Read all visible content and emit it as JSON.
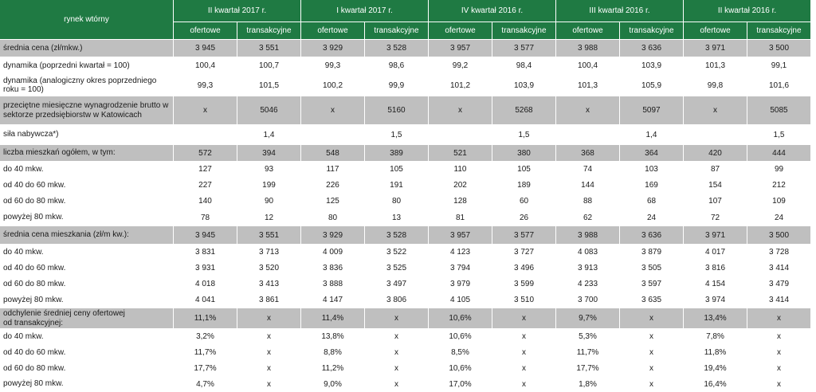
{
  "colors": {
    "header_bg": "#1f7a43",
    "header_text": "#ffffff",
    "shaded_row_bg": "#bfbfbf",
    "plain_row_bg": "#ffffff",
    "text": "#1a1a1a"
  },
  "chart_data": {
    "type": "table",
    "corner_label": "rynek wtórny",
    "column_groups": [
      "II kwartał 2017 r.",
      "I kwartał 2017 r.",
      "IV kwartał 2016 r.",
      "III kwartał 2016 r.",
      "II kwartał 2016 r."
    ],
    "subcolumns": [
      "ofertowe",
      "transakcyjne"
    ],
    "rows": [
      {
        "label": "średnia cena (zł/mkw.)",
        "shaded": true,
        "values": [
          "3 945",
          "3 551",
          "3 929",
          "3 528",
          "3 957",
          "3 577",
          "3 988",
          "3 636",
          "3 971",
          "3 500"
        ]
      },
      {
        "label": "dynamika (poprzedni kwartał = 100)",
        "shaded": false,
        "values": [
          "100,4",
          "100,7",
          "99,3",
          "98,6",
          "99,2",
          "98,4",
          "100,4",
          "103,9",
          "101,3",
          "99,1"
        ]
      },
      {
        "label": "dynamika (analogiczny okres poprzedniego\nroku  = 100)",
        "shaded": false,
        "values": [
          "99,3",
          "101,5",
          "100,2",
          "99,9",
          "101,2",
          "103,9",
          "101,3",
          "105,9",
          "99,8",
          "101,6"
        ]
      },
      {
        "label": "przeciętne miesięczne wynagrodzenie brutto w\nsektorze przedsiębiorstw w Katowicach",
        "shaded": true,
        "values": [
          "x",
          "5046",
          "x",
          "5160",
          "x",
          "5268",
          "x",
          "5097",
          "x",
          "5085"
        ]
      },
      {
        "label": "siła nabywcza*)",
        "shaded": false,
        "values": [
          "",
          "1,4",
          "",
          "1,5",
          "",
          "1,5",
          "",
          "1,4",
          "",
          "1,5"
        ]
      },
      {
        "label": "liczba mieszkań ogółem, w tym:",
        "shaded": true,
        "values": [
          "572",
          "394",
          "548",
          "389",
          "521",
          "380",
          "368",
          "364",
          "420",
          "444"
        ]
      },
      {
        "label": "do 40 mkw.",
        "shaded": false,
        "values": [
          "127",
          "93",
          "117",
          "105",
          "110",
          "105",
          "74",
          "103",
          "87",
          "99"
        ]
      },
      {
        "label": "od 40 do 60 mkw.",
        "shaded": false,
        "values": [
          "227",
          "199",
          "226",
          "191",
          "202",
          "189",
          "144",
          "169",
          "154",
          "212"
        ]
      },
      {
        "label": "od 60 do 80 mkw.",
        "shaded": false,
        "values": [
          "140",
          "90",
          "125",
          "80",
          "128",
          "60",
          "88",
          "68",
          "107",
          "109"
        ]
      },
      {
        "label": "powyżej 80 mkw.",
        "shaded": false,
        "values": [
          "78",
          "12",
          "80",
          "13",
          "81",
          "26",
          "62",
          "24",
          "72",
          "24"
        ]
      },
      {
        "label": "średnia cena mieszkania (zł/m kw.):",
        "shaded": true,
        "values": [
          "3 945",
          "3 551",
          "3 929",
          "3 528",
          "3 957",
          "3 577",
          "3 988",
          "3 636",
          "3 971",
          "3 500"
        ]
      },
      {
        "label": "do 40 mkw.",
        "shaded": false,
        "values": [
          "3 831",
          "3 713",
          "4 009",
          "3 522",
          "4 123",
          "3 727",
          "4 083",
          "3 879",
          "4 017",
          "3 728"
        ]
      },
      {
        "label": "od 40 do 60 mkw.",
        "shaded": false,
        "values": [
          "3 931",
          "3 520",
          "3 836",
          "3 525",
          "3 794",
          "3 496",
          "3 913",
          "3 505",
          "3 816",
          "3 414"
        ]
      },
      {
        "label": "od 60 do 80 mkw.",
        "shaded": false,
        "values": [
          "4 018",
          "3 413",
          "3 888",
          "3 497",
          "3 979",
          "3 599",
          "4 233",
          "3 597",
          "4 154",
          "3 479"
        ]
      },
      {
        "label": "powyżej 80 mkw.",
        "shaded": false,
        "values": [
          "4 041",
          "3 861",
          "4 147",
          "3 806",
          "4 105",
          "3 510",
          "3 700",
          "3 635",
          "3 974",
          "3 414"
        ]
      },
      {
        "label": "odchylenie średniej ceny ofertowej\nod transakcyjnej:",
        "shaded": true,
        "values": [
          "11,1%",
          "x",
          "11,4%",
          "x",
          "10,6%",
          "x",
          "9,7%",
          "x",
          "13,4%",
          "x"
        ]
      },
      {
        "label": "do 40 mkw.",
        "shaded": false,
        "values": [
          "3,2%",
          "x",
          "13,8%",
          "x",
          "10,6%",
          "x",
          "5,3%",
          "x",
          "7,8%",
          "x"
        ]
      },
      {
        "label": "od 40 do 60 mkw.",
        "shaded": false,
        "values": [
          "11,7%",
          "x",
          "8,8%",
          "x",
          "8,5%",
          "x",
          "11,7%",
          "x",
          "11,8%",
          "x"
        ]
      },
      {
        "label": "od 60 do 80 mkw.",
        "shaded": false,
        "values": [
          "17,7%",
          "x",
          "11,2%",
          "x",
          "10,6%",
          "x",
          "17,7%",
          "x",
          "19,4%",
          "x"
        ]
      },
      {
        "label": "powyżej 80 mkw.",
        "shaded": false,
        "values": [
          "4,7%",
          "x",
          "9,0%",
          "x",
          "17,0%",
          "x",
          "1,8%",
          "x",
          "16,4%",
          "x"
        ]
      }
    ]
  }
}
